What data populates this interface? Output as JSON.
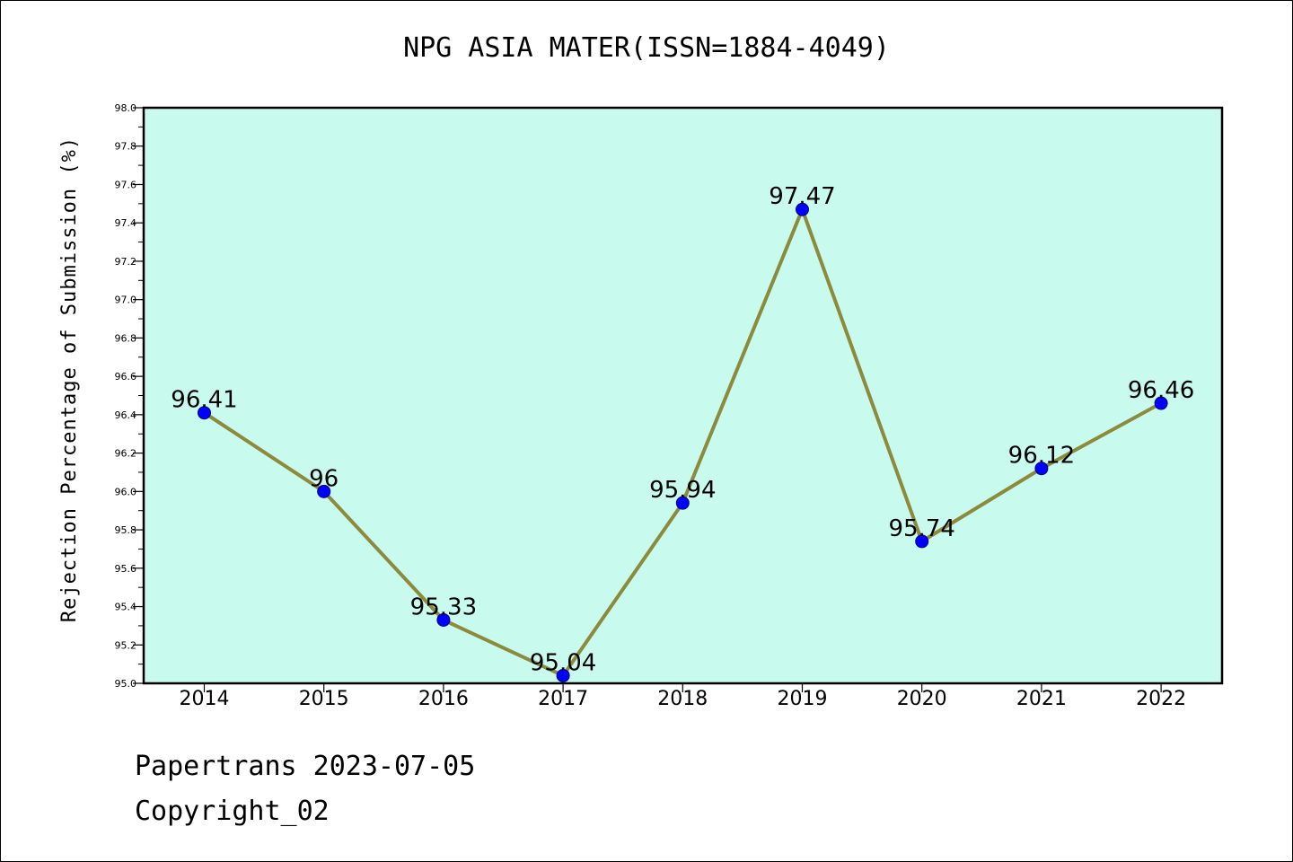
{
  "chart_data": {
    "type": "line",
    "title": "NPG ASIA MATER(ISSN=1884-4049)",
    "xlabel": "",
    "ylabel": "Rejection Percentage of Submission (%)",
    "categories": [
      "2014",
      "2015",
      "2016",
      "2017",
      "2018",
      "2019",
      "2020",
      "2021",
      "2022"
    ],
    "series": [
      {
        "values": [
          96.41,
          96,
          95.33,
          95.04,
          95.94,
          97.47,
          95.74,
          96.12,
          96.46
        ],
        "labels": [
          "96.41",
          "96",
          "95.33",
          "95.04",
          "95.94",
          "97.47",
          "95.74",
          "96.12",
          "96.46"
        ]
      }
    ],
    "ylim": [
      95.0,
      98.0
    ],
    "yticks": [
      "95.0",
      "95.2",
      "95.4",
      "95.6",
      "95.8",
      "96.0",
      "96.2",
      "96.4",
      "96.6",
      "96.8",
      "97.0",
      "97.2",
      "97.4",
      "97.6",
      "97.8",
      "98.0"
    ],
    "grid": false,
    "colors": {
      "plot_bg": "#c8fbee",
      "line": "#8c8a3c",
      "marker": "#0000ff"
    }
  },
  "footer": {
    "line1": "Papertrans 2023-07-05",
    "line2": "Copyright_02"
  }
}
